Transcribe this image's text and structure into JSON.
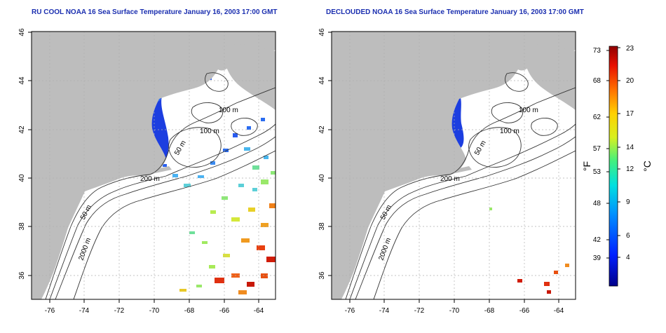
{
  "titles": {
    "left": "RU COOL NOAA 16 Sea Surface Temperature January 16, 2003 17:00 GMT",
    "right": "DECLOUDED NOAA 16 Sea Surface Temperature January 16, 2003 17:00 GMT"
  },
  "axes": {
    "x_ticks": [
      "-76",
      "-74",
      "-72",
      "-70",
      "-68",
      "-66",
      "-64"
    ],
    "y_ticks": [
      "36",
      "38",
      "40",
      "42",
      "44",
      "46"
    ]
  },
  "contour_labels": {
    "shelf_100_a": "100 m",
    "shelf_100_b": "100 m",
    "bank_50": "50 m",
    "shelf_200": "200 m",
    "slope_50": "50 m",
    "slope_2000": "2000 m"
  },
  "colorbar": {
    "fahrenheit_label": "°F",
    "celsius_label": "°C",
    "fahrenheit_ticks": [
      "73",
      "68",
      "62",
      "57",
      "53",
      "48",
      "42",
      "39"
    ],
    "celsius_ticks": [
      "23",
      "20",
      "17",
      "14",
      "12",
      "9",
      "6",
      "4"
    ]
  },
  "colors": {
    "title": "#1b2fb0",
    "land": "#bdbdbd",
    "contour": "#333333",
    "grid": "#b0b0b0"
  }
}
